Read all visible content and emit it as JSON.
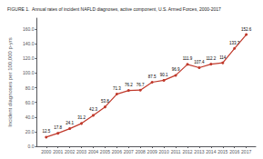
{
  "chart_data": {
    "type": "line",
    "title": "FIGURE 1.  Annual rates of incident NAFLD diagnoses, active component, U.S. Armed Forces, 2000-2017",
    "ylabel": "Incident diagnoses per 100,000 p-yrs",
    "x": [
      2000,
      2001,
      2002,
      2003,
      2004,
      2005,
      2006,
      2007,
      2008,
      2009,
      2010,
      2011,
      2012,
      2013,
      2014,
      2015,
      2016,
      2017
    ],
    "values": [
      12.5,
      17.8,
      24.1,
      31.2,
      42.3,
      53.8,
      71.3,
      76.2,
      76.7,
      87.5,
      90.1,
      96.9,
      111.9,
      107.4,
      112.2,
      114.0,
      133.7,
      152.6
    ],
    "color": "#c0392b",
    "marker": "circle",
    "xlim": [
      1999.2,
      2017.8
    ],
    "xticks": [
      2000,
      2001,
      2002,
      2003,
      2004,
      2005,
      2006,
      2007,
      2008,
      2009,
      2010,
      2011,
      2012,
      2013,
      2014,
      2015,
      2016,
      2017
    ],
    "ylim": [
      0,
      175
    ],
    "yticks": [
      {
        "value": 0,
        "label": "0.0"
      },
      {
        "value": 20,
        "label": "20.0"
      },
      {
        "value": 40,
        "label": "40.0"
      },
      {
        "value": 60,
        "label": "60.0"
      },
      {
        "value": 80,
        "label": "80.0"
      },
      {
        "value": 100,
        "label": "100.0"
      },
      {
        "value": 120,
        "label": "120.0"
      },
      {
        "value": 140,
        "label": "140.0"
      },
      {
        "value": 160,
        "label": "160.0"
      }
    ],
    "grid": false,
    "data_labels": true
  }
}
